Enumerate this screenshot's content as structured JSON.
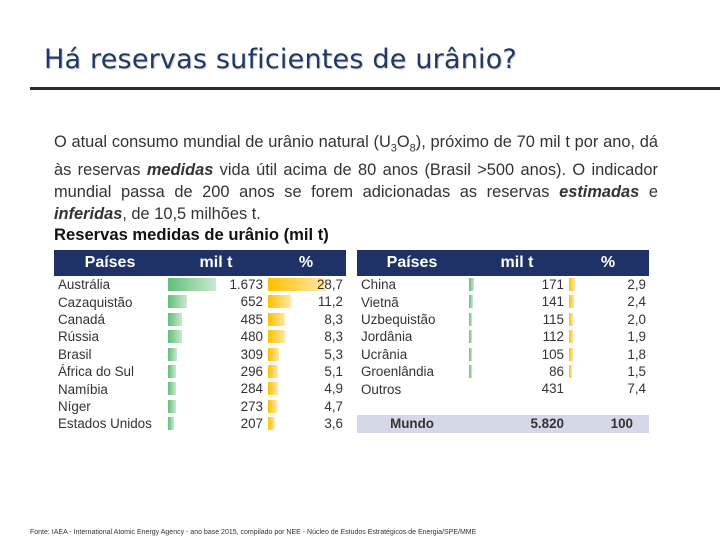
{
  "title": "Há reservas suficientes de urânio?",
  "paragraph": {
    "p1": "O atual consumo mundial de urânio natural (U",
    "sub3": "3",
    "p2": "O",
    "sub8": "8",
    "p3": "), próximo de 70 mil t por ano, dá às reservas ",
    "em1": "medidas",
    "p4": " vida útil acima de 80 anos (Brasil >500 anos). O indicador mundial passa de 200 anos se forem adicionadas as reservas ",
    "em2": "estimadas",
    "p5": " e ",
    "em3": "inferidas",
    "p6": ", de 10,5 milhões t."
  },
  "subtitle": "Reservas medidas de urânio (mil t)",
  "left_table": {
    "headers": [
      "Países",
      "mil t",
      "%"
    ],
    "rows": [
      {
        "country": "Austrália",
        "milt": "1.673",
        "pct": "28,7",
        "milt_num": 1673,
        "pct_num": 28.7
      },
      {
        "country": "Cazaquistão",
        "milt": "652",
        "pct": "11,2",
        "milt_num": 652,
        "pct_num": 11.2
      },
      {
        "country": "Canadá",
        "milt": "485",
        "pct": "8,3",
        "milt_num": 485,
        "pct_num": 8.3
      },
      {
        "country": "Rússia",
        "milt": "480",
        "pct": "8,3",
        "milt_num": 480,
        "pct_num": 8.3
      },
      {
        "country": "Brasil",
        "milt": "309",
        "pct": "5,3",
        "milt_num": 309,
        "pct_num": 5.3
      },
      {
        "country": "África do Sul",
        "milt": "296",
        "pct": "5,1",
        "milt_num": 296,
        "pct_num": 5.1
      },
      {
        "country": "Namíbia",
        "milt": "284",
        "pct": "4,9",
        "milt_num": 284,
        "pct_num": 4.9
      },
      {
        "country": "Níger",
        "milt": "273",
        "pct": "4,7",
        "milt_num": 273,
        "pct_num": 4.7
      },
      {
        "country": "Estados Unidos",
        "milt": "207",
        "pct": "3,6",
        "milt_num": 207,
        "pct_num": 3.6
      }
    ]
  },
  "right_table": {
    "headers": [
      "Países",
      "mil t",
      "%"
    ],
    "rows": [
      {
        "country": "China",
        "milt": "171",
        "pct": "2,9",
        "milt_num": 171,
        "pct_num": 2.9
      },
      {
        "country": "Vietnã",
        "milt": "141",
        "pct": "2,4",
        "milt_num": 141,
        "pct_num": 2.4
      },
      {
        "country": "Uzbequistão",
        "milt": "115",
        "pct": "2,0",
        "milt_num": 115,
        "pct_num": 2.0
      },
      {
        "country": "Jordânia",
        "milt": "112",
        "pct": "1,9",
        "milt_num": 112,
        "pct_num": 1.9
      },
      {
        "country": "Ucrânia",
        "milt": "105",
        "pct": "1,8",
        "milt_num": 105,
        "pct_num": 1.8
      },
      {
        "country": "Groenlândia",
        "milt": "86",
        "pct": "1,5",
        "milt_num": 86,
        "pct_num": 1.5
      },
      {
        "country": "Outros",
        "milt": "431",
        "pct": "7,4",
        "milt_num": null,
        "pct_num": null
      }
    ],
    "total": {
      "country": "Mundo",
      "milt": "5.820",
      "pct": "100"
    }
  },
  "footer": "Fonte: IAEA - International Atomic Energy Agency - ano base 2015, compilado por NEE - Núcleo de Estudos Estratégicos de Energia/SPE/MME",
  "colors": {
    "header_bg": "#1f3267",
    "title": "#1f3864",
    "green_bar": "#63be7b",
    "orange_bar": "#ffc000",
    "total_bg": "#d5d8e8"
  }
}
